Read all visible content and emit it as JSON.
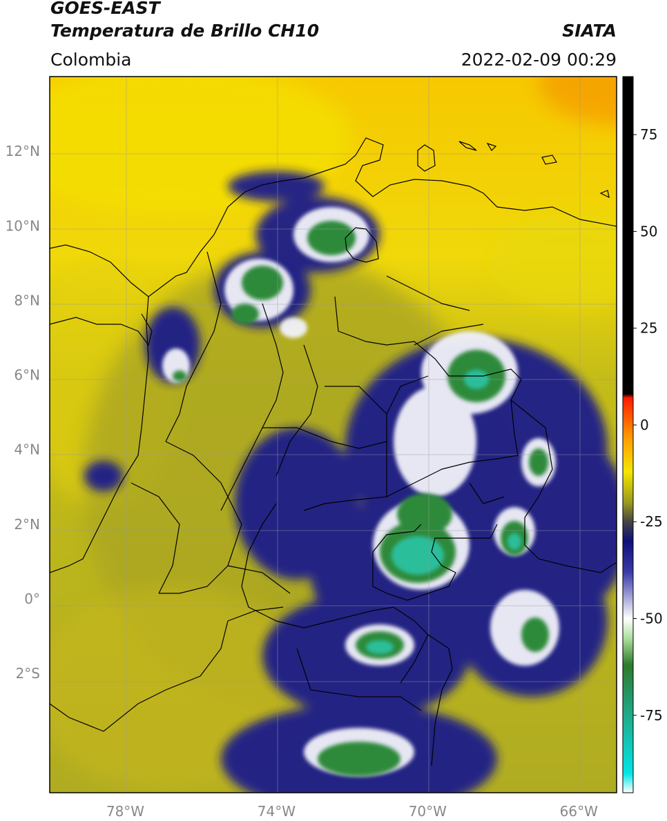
{
  "header": {
    "satellite": "GOES-EAST",
    "product": "Temperatura de Brillo CH10",
    "region": "Colombia",
    "agency": "SIATA",
    "datetime": "2022-02-09 00:29"
  },
  "map": {
    "lon_range": [
      -80,
      -65
    ],
    "lat_range": [
      -5.2,
      14
    ],
    "lon_ticks": [
      {
        "value": -78,
        "label": "78°W"
      },
      {
        "value": -74,
        "label": "74°W"
      },
      {
        "value": -70,
        "label": "70°W"
      },
      {
        "value": -66,
        "label": "66°W"
      }
    ],
    "lat_ticks": [
      {
        "value": 12,
        "label": "12°N"
      },
      {
        "value": 10,
        "label": "10°N"
      },
      {
        "value": 8,
        "label": "8°N"
      },
      {
        "value": 6,
        "label": "6°N"
      },
      {
        "value": 4,
        "label": "4°N"
      },
      {
        "value": 2,
        "label": "2°N"
      },
      {
        "value": 0,
        "label": "0°"
      },
      {
        "value": -2,
        "label": "2°S"
      }
    ],
    "grid": true,
    "colors": {
      "background_warm": "#f2d80a",
      "background_olive": "#b5b020",
      "cloud_blue": "#1a1a8c",
      "cloud_white": "#ffffff",
      "cloud_green": "#2f8a3a",
      "cloud_teal": "#22c4a8",
      "border": "#000000"
    }
  },
  "colorbar": {
    "range": [
      -95,
      90
    ],
    "ticks": [
      {
        "value": 75,
        "label": "75"
      },
      {
        "value": 50,
        "label": "50"
      },
      {
        "value": 25,
        "label": "25"
      },
      {
        "value": 0,
        "label": "0"
      },
      {
        "value": -25,
        "label": "-25"
      },
      {
        "value": -50,
        "label": "-50"
      },
      {
        "value": -75,
        "label": "-75"
      }
    ],
    "stops": [
      {
        "value": -95,
        "color": "#ffffff"
      },
      {
        "value": -90,
        "color": "#00e5e5"
      },
      {
        "value": -75,
        "color": "#1faa8a"
      },
      {
        "value": -62,
        "color": "#2d7a2d"
      },
      {
        "value": -55,
        "color": "#aee0a0"
      },
      {
        "value": -50,
        "color": "#ffffff"
      },
      {
        "value": -38,
        "color": "#3a3aa8"
      },
      {
        "value": -30,
        "color": "#10107a"
      },
      {
        "value": -25,
        "color": "#444444"
      },
      {
        "value": -20,
        "color": "#9a9a20"
      },
      {
        "value": -12,
        "color": "#f5e600"
      },
      {
        "value": -3,
        "color": "#ff9900"
      },
      {
        "value": 7,
        "color": "#ff1a00"
      },
      {
        "value": 8,
        "color": "#000000"
      },
      {
        "value": 90,
        "color": "#000000"
      }
    ]
  }
}
